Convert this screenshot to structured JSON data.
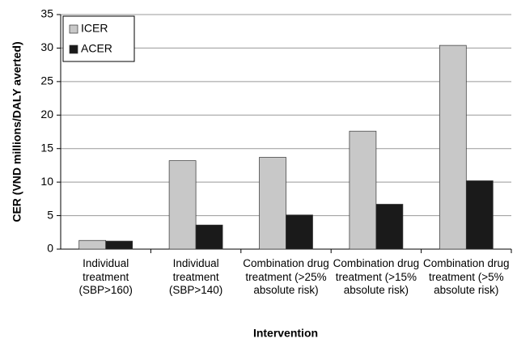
{
  "chart_data": {
    "type": "bar",
    "x_label": "Intervention",
    "y_label": "CER (VND millions/DALY averted)",
    "categories": [
      "Individual treatment (SBP>160)",
      "Individual treatment (SBP>140)",
      "Combination drug treatment (>25% absolute risk)",
      "Combination drug treatment (>15% absolute risk)",
      "Combination drug treatment (>5% absolute risk)"
    ],
    "series": [
      {
        "name": "ICER",
        "color": "#c8c8c8",
        "values": [
          1.3,
          13.2,
          13.7,
          17.6,
          30.4
        ]
      },
      {
        "name": "ACER",
        "color": "#1a1a1a",
        "values": [
          1.2,
          3.6,
          5.1,
          6.7,
          10.2
        ]
      }
    ],
    "ylim": [
      0,
      35
    ],
    "yticks": [
      0,
      5,
      10,
      15,
      20,
      25,
      30,
      35
    ],
    "grid": true,
    "legend": "top-left"
  }
}
